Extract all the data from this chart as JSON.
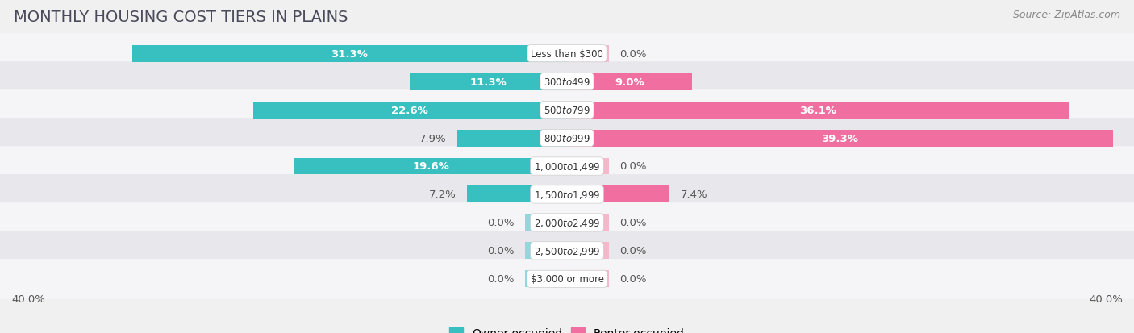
{
  "title": "MONTHLY HOUSING COST TIERS IN PLAINS",
  "source": "Source: ZipAtlas.com",
  "categories": [
    "Less than $300",
    "$300 to $499",
    "$500 to $799",
    "$800 to $999",
    "$1,000 to $1,499",
    "$1,500 to $1,999",
    "$2,000 to $2,499",
    "$2,500 to $2,999",
    "$3,000 or more"
  ],
  "owner_values": [
    31.3,
    11.3,
    22.6,
    7.9,
    19.6,
    7.2,
    0.0,
    0.0,
    0.0
  ],
  "renter_values": [
    0.0,
    9.0,
    36.1,
    39.3,
    0.0,
    7.4,
    0.0,
    0.0,
    0.0
  ],
  "owner_color": "#38bfc0",
  "renter_color": "#f06fa0",
  "owner_color_zero": "#90d8db",
  "renter_color_zero": "#f5b8cb",
  "axis_limit": 40.0,
  "background_color": "#f0f0f0",
  "row_bg_even": "#e8e8ec",
  "row_bg_odd": "#f5f5f8",
  "label_dark": "#555555",
  "label_white": "#ffffff",
  "title_fontsize": 14,
  "source_fontsize": 9,
  "bar_label_fontsize": 9.5,
  "category_fontsize": 8.5,
  "legend_fontsize": 10,
  "bar_height": 0.6,
  "zero_bar_width": 3.0
}
